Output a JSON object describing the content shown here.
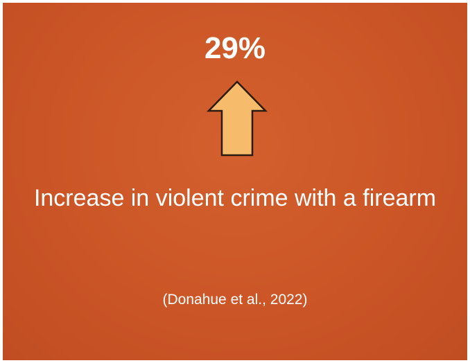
{
  "slide": {
    "stat_value": "29%",
    "arrow_icon": "up-arrow-icon",
    "arrow_color": "#f7bb6c",
    "caption": "Increase in violent crime with a firearm",
    "citation": "(Donahue et al., 2022)",
    "background_color": "#cb5526",
    "text_color": "#ffffff"
  }
}
